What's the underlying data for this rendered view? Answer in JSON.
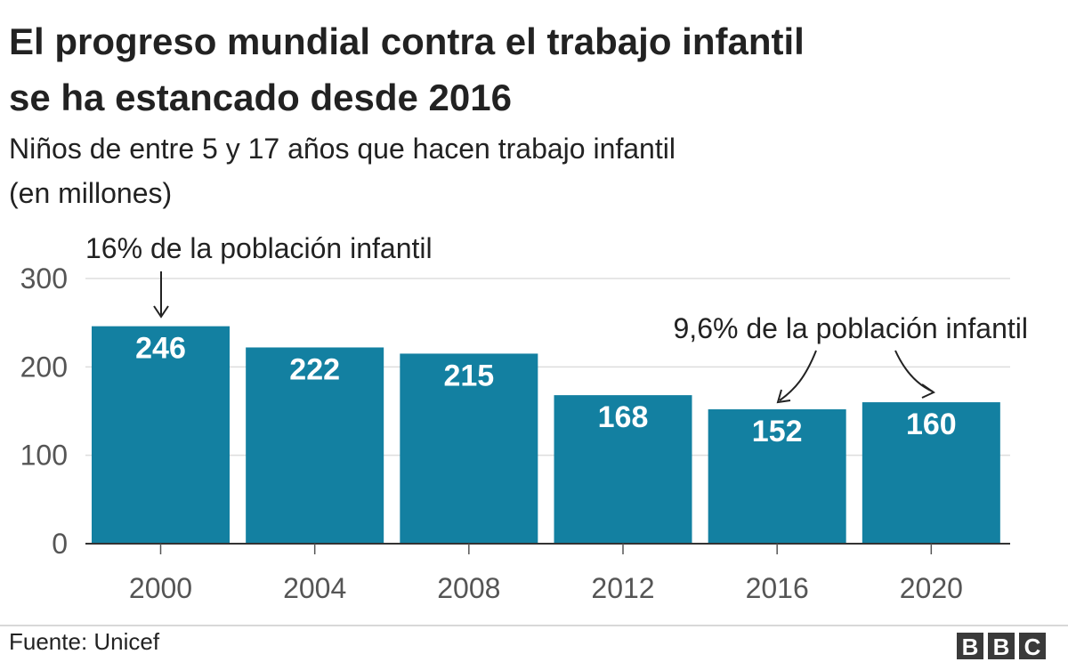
{
  "chart_data": {
    "type": "bar",
    "title_lines": [
      "El progreso mundial contra el trabajo infantil",
      "se ha estancado desde 2016"
    ],
    "subtitle_lines": [
      "Niños de entre 5 y 17 años que hacen trabajo infantil",
      "(en millones)"
    ],
    "categories": [
      "2000",
      "2004",
      "2008",
      "2012",
      "2016",
      "2020"
    ],
    "values": [
      246,
      222,
      215,
      168,
      152,
      160
    ],
    "data_labels": [
      "246",
      "222",
      "215",
      "168",
      "152",
      "160"
    ],
    "yticks": [
      0,
      100,
      200,
      300
    ],
    "ytick_labels": [
      "0",
      "100",
      "200",
      "300"
    ],
    "ylim": [
      0,
      300
    ],
    "grid": true,
    "bar_color": "#1380a1",
    "annotations": [
      {
        "id": "a2000",
        "text": "16% de la población infantil"
      },
      {
        "id": "a2016",
        "text": "9,6% de la población infantil"
      }
    ]
  },
  "footer": {
    "source": "Fuente: Unicef",
    "logo_letters": [
      "B",
      "B",
      "C"
    ]
  }
}
